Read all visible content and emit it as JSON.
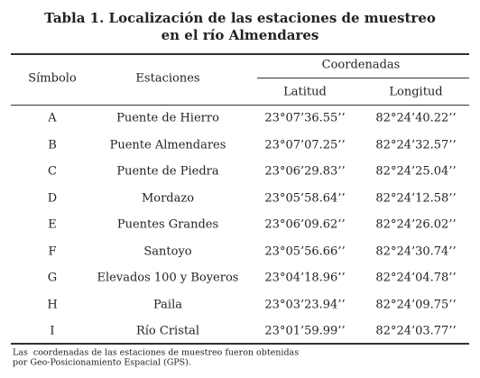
{
  "title": [
    "Tabla 1. Localización de las estaciones de muestreo",
    "en el río Almendares"
  ],
  "table": {
    "headers": {
      "symbol": "Símbolo",
      "station": "Estaciones",
      "coordinates": "Coordenadas",
      "latitude": "Latitud",
      "longitude": "Longitud"
    },
    "rows": [
      [
        "A",
        "Puente de Hierro",
        "23°07’36.55’’",
        "82°24’40.22’’"
      ],
      [
        "B",
        "Puente Almendares",
        "23°07’07.25’’",
        "82°24’32.57’’"
      ],
      [
        "C",
        "Puente de Piedra",
        "23°06’29.83’’",
        "82°24’25.04’’"
      ],
      [
        "D",
        "Mordazo",
        "23°05’58.64’’",
        "82°24’12.58’’"
      ],
      [
        "E",
        "Puentes Grandes",
        "23°06’09.62’’",
        "82°24’26.02’’"
      ],
      [
        "F",
        "Santoyo",
        "23°05’56.66’’",
        "82°24’30.74’’"
      ],
      [
        "G",
        "Elevados 100 y Boyeros",
        "23°04’18.96’’",
        "82°24’04.78’’"
      ],
      [
        "H",
        "Paila",
        "23°03’23.94’’",
        "82°24’09.75’’"
      ],
      [
        "I",
        "Río Cristal",
        "23°01’59.99’’",
        "82°24’03.77’’"
      ]
    ]
  },
  "footnote": [
    "Las  coordenadas de las estaciones de muestreo fueron obtenidas",
    "por Geo-Posicionamiento Espacial (GPS)."
  ]
}
